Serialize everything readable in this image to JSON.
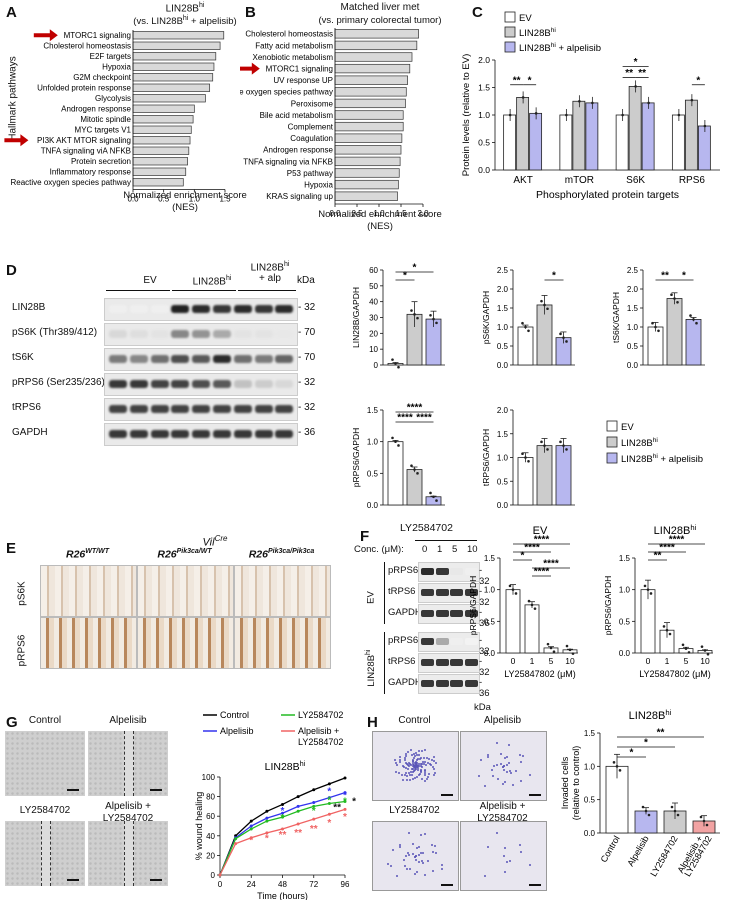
{
  "panels": {
    "A": {
      "letter": "A",
      "title": "LIN28B",
      "title_sup": "hi",
      "subtitle": "(vs. LIN28B",
      "subtitle_sup": "hi",
      "subtitle_end": " + alpelisib)",
      "ylabel": "Hallmark pathways",
      "xlabel": "Normalized enrichment score",
      "xlabel2": "(NES)",
      "ticks": [
        "0.0",
        "0.5",
        "1.0",
        "1.5"
      ],
      "xmax": 1.5,
      "chart_data": {
        "type": "bar",
        "categories": [
          "MTORC1 signaling",
          "Cholesterol homeostasis",
          "E2F targets",
          "Hypoxia",
          "G2M checkpoint",
          "Unfolded protein response",
          "Glycolysis",
          "Androgen response",
          "Mitotic spindle",
          "MYC targets V1",
          "PI3K AKT MTOR signaling",
          "TNFA signaling viA NFKB",
          "Protein secretion",
          "Inflammatory response",
          "Reactive oxygen species pathway"
        ],
        "values": [
          1.48,
          1.42,
          1.35,
          1.32,
          1.3,
          1.25,
          1.18,
          1.0,
          0.98,
          0.95,
          0.93,
          0.91,
          0.89,
          0.86,
          0.82
        ],
        "xlim": [
          0,
          1.5
        ],
        "highlighted": [
          "MTORC1 signaling",
          "PI3K AKT MTOR signaling"
        ]
      }
    },
    "B": {
      "letter": "B",
      "title": "Matched liver met",
      "subtitle": "(vs. primary colorectal tumor)",
      "xlabel": "Normalized enrichment score",
      "xlabel2": "(NES)",
      "ticks": [
        "0.0",
        "0.5",
        "1.0",
        "1.5",
        "2.0"
      ],
      "xmax": 2.0,
      "chart_data": {
        "type": "bar",
        "categories": [
          "Cholesterol homeostasis",
          "Fatty acid metabolism",
          "Xenobiotic metabolism",
          "MTORC1 signaling",
          "UV response UP",
          "Reactive oxygen species pathway",
          "Peroxisome",
          "Bile acid metabolism",
          "Complement",
          "Coagulation",
          "Androgen response",
          "TNFA signaling via NFKB",
          "P53 pathway",
          "Hypoxia",
          "KRAS signaling up"
        ],
        "values": [
          1.9,
          1.86,
          1.75,
          1.7,
          1.65,
          1.62,
          1.6,
          1.55,
          1.55,
          1.52,
          1.5,
          1.48,
          1.46,
          1.44,
          1.42
        ],
        "xlim": [
          0,
          2.0
        ],
        "highlighted": [
          "MTORC1 signaling"
        ]
      }
    },
    "C": {
      "letter": "C",
      "ylabel": "Protein levels (relative to EV)",
      "xlabel": "Phosphorylated protein targets",
      "ticks": [
        "0.0",
        "0.5",
        "1.0",
        "1.5",
        "2.0"
      ],
      "ymax": 2.0,
      "legend": [
        {
          "label": "EV",
          "sup": "",
          "end": "",
          "color": "#ffffff"
        },
        {
          "label": "LIN28B",
          "sup": "hi",
          "end": "",
          "color": "#cccccc"
        },
        {
          "label": "LIN28B",
          "sup": "hi",
          "end": " + alpelisib",
          "color": "#b7b7ef"
        }
      ],
      "chart_data": {
        "type": "bar",
        "categories": [
          "AKT",
          "mTOR",
          "S6K",
          "RPS6"
        ],
        "series": [
          {
            "name": "EV",
            "values": [
              1.0,
              1.0,
              1.0,
              1.0
            ],
            "color": "#ffffff"
          },
          {
            "name": "LIN28Bhi",
            "values": [
              1.32,
              1.25,
              1.52,
              1.27
            ],
            "color": "#cccccc"
          },
          {
            "name": "LIN28Bhi + alpelisib",
            "values": [
              1.03,
              1.22,
              1.22,
              0.8
            ],
            "color": "#b7b7ef"
          }
        ],
        "ylim": [
          0,
          2.0
        ],
        "significance": [
          "**",
          "*",
          "*",
          "**",
          "**",
          "*"
        ]
      }
    },
    "D": {
      "letter": "D",
      "group_ev": "EV",
      "group_lin": "LIN28B",
      "group_lin_sup": "hi",
      "group_alp1": "LIN28B",
      "group_alp_sup": "hi",
      "group_alp2": "+ alp",
      "kda": "kDa",
      "rows": [
        {
          "label": "LIN28B",
          "kda": "32"
        },
        {
          "label": "pS6K (Thr389/412)",
          "kda": "70"
        },
        {
          "label": "tS6K",
          "kda": "70"
        },
        {
          "label": "pRPS6 (Ser235/236)",
          "kda": "32"
        },
        {
          "label": "tRPS6",
          "kda": "32"
        },
        {
          "label": "GAPDH",
          "kda": "36"
        }
      ],
      "legend": [
        {
          "label": "EV",
          "sup": "",
          "end": "",
          "color": "#ffffff"
        },
        {
          "label": "LIN28B",
          "sup": "hi",
          "end": "",
          "color": "#cccccc"
        },
        {
          "label": "LIN28B",
          "sup": "hi",
          "end": " + alpelisib",
          "color": "#b7b7ef"
        }
      ],
      "charts": [
        {
          "ylabel": "LIN28B/GAPDH",
          "ticks": [
            "0",
            "10",
            "20",
            "30",
            "40",
            "50",
            "60"
          ],
          "ymax": 60,
          "values": [
            1,
            32,
            29
          ],
          "errors": [
            0.5,
            8,
            5
          ],
          "stars": [
            "*",
            "*"
          ]
        },
        {
          "ylabel": "pS6K/GAPDH",
          "ticks": [
            "0.0",
            "0.5",
            "1.0",
            "1.5",
            "2.0",
            "2.5"
          ],
          "ymax": 2.5,
          "values": [
            1.0,
            1.58,
            0.72
          ],
          "errors": [
            0.05,
            0.25,
            0.15
          ],
          "stars": [
            "*"
          ]
        },
        {
          "ylabel": "tS6K/GAPDH",
          "ticks": [
            "0.0",
            "0.5",
            "1.0",
            "1.5",
            "2.0",
            "2.5"
          ],
          "ymax": 2.5,
          "values": [
            1.0,
            1.75,
            1.2
          ],
          "errors": [
            0.12,
            0.15,
            0.05
          ],
          "stars": [
            "**",
            "*"
          ]
        },
        {
          "ylabel": "pRPS6/GAPDH",
          "ticks": [
            "0.0",
            "0.5",
            "1.0",
            "1.5"
          ],
          "ymax": 1.5,
          "values": [
            1.0,
            0.56,
            0.13
          ],
          "errors": [
            0.02,
            0.04,
            0.01
          ],
          "stars": [
            "****",
            "****",
            "****"
          ]
        },
        {
          "ylabel": "tRPS6/GAPDH",
          "ticks": [
            "0.0",
            "0.5",
            "1.0",
            "1.5",
            "2.0"
          ],
          "ymax": 2.0,
          "values": [
            1.0,
            1.25,
            1.25
          ],
          "errors": [
            0.1,
            0.15,
            0.15
          ],
          "stars": []
        }
      ]
    },
    "E": {
      "letter": "E",
      "header": "Vil",
      "header_sup": "Cre",
      "cols": [
        {
          "label": "R26",
          "sup": "WT/WT"
        },
        {
          "label": "R26",
          "sup": "Pik3ca/WT"
        },
        {
          "label": "R26",
          "sup": "Pik3ca/Pik3ca"
        }
      ],
      "rows": [
        "pS6K",
        "pRPS6"
      ]
    },
    "F": {
      "letter": "F",
      "compound": "LY2584702",
      "conc_label": "Conc. (μM):",
      "concs": [
        "0",
        "1",
        "5",
        "10"
      ],
      "ev_label": "EV",
      "lin_label": "LIN28B",
      "lin_sup": "hi",
      "blot_rows": [
        {
          "label": "pRPS6",
          "kda": "32"
        },
        {
          "label": "tRPS6",
          "kda": "32"
        },
        {
          "label": "GAPDH",
          "kda": "36"
        }
      ],
      "kda": "kDa",
      "charts": [
        {
          "title": "EV",
          "title_sup": "",
          "ylabel": "pRPS6/GAPDH",
          "xlabel": "LY25847802 (μM)",
          "ticks": [
            "0.0",
            "0.5",
            "1.0",
            "1.5"
          ],
          "ymax": 1.5,
          "categories": [
            "0",
            "1",
            "5",
            "10"
          ],
          "values": [
            1.0,
            0.76,
            0.08,
            0.05
          ],
          "errors": [
            0.08,
            0.05,
            0.02,
            0.01
          ],
          "stars": [
            "****",
            "****",
            "*",
            "****",
            "****"
          ]
        },
        {
          "title": "LIN28B",
          "title_sup": "hi",
          "ylabel": "pRPS6/GAPDH",
          "xlabel": "LY25847802 (μM)",
          "ticks": [
            "0.0",
            "0.5",
            "1.0",
            "1.5"
          ],
          "ymax": 1.5,
          "categories": [
            "0",
            "1",
            "5",
            "10"
          ],
          "values": [
            1.0,
            0.36,
            0.07,
            0.04
          ],
          "errors": [
            0.15,
            0.12,
            0.02,
            0.01
          ],
          "stars": [
            "****",
            "****",
            "**"
          ]
        }
      ]
    },
    "G": {
      "letter": "G",
      "images": [
        "Control",
        "Alpelisib",
        "LY2584702",
        "Alpelisib +",
        "LY2584702"
      ],
      "legend": [
        {
          "label": "Control",
          "color": "#000000"
        },
        {
          "label": "LY2584702",
          "color": "#22bb22"
        },
        {
          "label": "Alpelisib",
          "color": "#3333ee"
        },
        {
          "label": "Alpelisib +",
          "label2": "LY2584702",
          "color": "#f06464"
        }
      ],
      "title": "LIN28B",
      "title_sup": "hi",
      "ylabel": "% wound healing",
      "xlabel": "Time (hours)",
      "yticks": [
        "0",
        "20",
        "40",
        "60",
        "80",
        "100"
      ],
      "xticks": [
        "0",
        "24",
        "48",
        "72",
        "96"
      ],
      "chart_data": {
        "type": "line",
        "x": [
          0,
          12,
          24,
          36,
          48,
          60,
          72,
          84,
          96
        ],
        "series": [
          {
            "name": "Control",
            "values": [
              0,
              40,
              55,
              65,
              72,
              80,
              87,
              93,
              99
            ],
            "color": "#000000"
          },
          {
            "name": "Alpelisib",
            "values": [
              0,
              38,
              50,
              58,
              63,
              70,
              74,
              79,
              84
            ],
            "color": "#3333ee"
          },
          {
            "name": "LY2584702",
            "values": [
              0,
              37,
              47,
              55,
              59,
              65,
              70,
              73,
              75
            ],
            "color": "#22bb22"
          },
          {
            "name": "Alpelisib + LY2584702",
            "values": [
              0,
              32,
              38,
              43,
              47,
              52,
              57,
              62,
              67
            ],
            "color": "#f06464"
          }
        ],
        "xlim": [
          0,
          96
        ],
        "ylim": [
          0,
          100
        ]
      },
      "stars": [
        "*",
        "*",
        "*",
        "*",
        "*",
        "*",
        "*",
        "**",
        "**",
        "**",
        "*",
        "*",
        "*",
        "*",
        "**",
        "*"
      ]
    },
    "H": {
      "letter": "H",
      "images": [
        "Control",
        "Alpelisib",
        "LY2584702",
        "Alpelisib +",
        "LY2584702"
      ],
      "title": "LIN28B",
      "title_sup": "hi",
      "ylabel": "Invaded cells",
      "ylabel2": "(relative to control)",
      "yticks": [
        "0.0",
        "0.5",
        "1.0",
        "1.5"
      ],
      "chart_data": {
        "type": "bar",
        "categories": [
          "Control",
          "Alpelisib",
          "LY2584702",
          "Alpelisib + LY2584702"
        ],
        "values": [
          1.0,
          0.33,
          0.33,
          0.18
        ],
        "errors": [
          0.18,
          0.05,
          0.12,
          0.08
        ],
        "colors": [
          "#ffffff",
          "#b7b7ef",
          "#cccccc",
          "#f2a3a3"
        ],
        "ylim": [
          0,
          1.5
        ]
      },
      "stars": [
        "*",
        "*",
        "**"
      ]
    }
  }
}
